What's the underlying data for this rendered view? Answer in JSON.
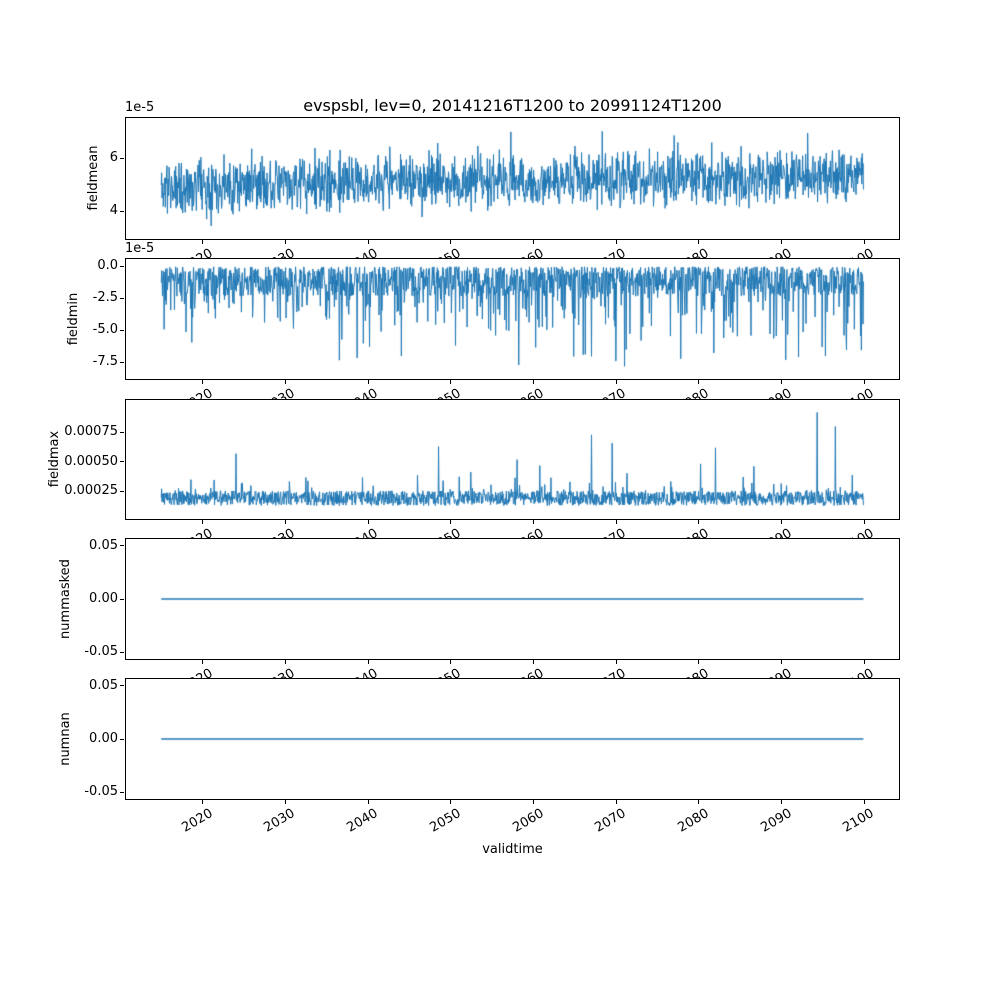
{
  "chart_data": {
    "type": "line",
    "title": "evspsbl, lev=0, 20141216T1200 to 20991124T1200",
    "xlabel": "validtime",
    "line_color": "#1f77b4",
    "background": "#ffffff",
    "x_start": 2014.96,
    "x_end": 2099.9,
    "xlim": [
      2010.7,
      2104.2
    ],
    "xticks": [
      2020,
      2030,
      2040,
      2050,
      2060,
      2070,
      2080,
      2090,
      2100
    ],
    "xtick_rotation_deg": 30,
    "panels": [
      {
        "ylabel": "fieldmean",
        "offset_text": "1e-5",
        "ylim": [
          2.96e-05,
          7.52e-05
        ],
        "yticks": [
          {
            "value": 6e-05,
            "label": "6"
          },
          {
            "value": 4e-05,
            "label": "4"
          }
        ],
        "series": {
          "gen": "mean",
          "seed": 11,
          "n": 1700,
          "base": 4.95e-05,
          "trend": 3.5e-06,
          "spread": 1.15e-05,
          "spike_prob": 0.08,
          "spike_scale": 2.2e-05,
          "clip": [
            3.4e-05,
            7.3e-05
          ],
          "description": "dense noisy band centred near 5e-5 (range ~3.5e-5 to 7.3e-5) with slight upward drift"
        }
      },
      {
        "ylabel": "fieldmin",
        "offset_text": "1e-5",
        "ylim": [
          -8.79e-05,
          5.5e-06
        ],
        "yticks": [
          {
            "value": 0,
            "label": "0.0"
          },
          {
            "value": -2.5e-05,
            "label": "-2.5"
          },
          {
            "value": -5e-05,
            "label": "-5.0"
          },
          {
            "value": -7.5e-05,
            "label": "-7.5"
          }
        ],
        "series": {
          "gen": "min",
          "seed": 22,
          "n": 1700,
          "surface": -5e-07,
          "band": 2.3e-05,
          "mid_prob": 0.12,
          "mid_base": 2e-05,
          "mid_scale": 2.3e-05,
          "mid_trend": 1.6e-05,
          "deep_prob_base": 0.008,
          "deep_prob_trend": 0.014,
          "deep_base": 4.8e-05,
          "deep_scale": 2.6e-05,
          "clip_min": -7.9e-05,
          "highlights": [
            {
              "x": 2058.2,
              "y": -7.7e-05
            },
            {
              "x": 2066.0,
              "y": -6.9e-05
            },
            {
              "x": 2071.0,
              "y": -7.8e-05
            },
            {
              "x": 2090.5,
              "y": -7.3e-05
            }
          ],
          "description": "noise between 0 and about -2.5e-5 with downward spikes (to -7.8e-5) growing more frequent over time"
        }
      },
      {
        "ylabel": "fieldmax",
        "offset_text": null,
        "ylim": [
          1.67e-05,
          0.0010252
        ],
        "yticks": [
          {
            "value": 0.00075,
            "label": "0.00075"
          },
          {
            "value": 0.0005,
            "label": "0.00050"
          },
          {
            "value": 0.00025,
            "label": "0.00025"
          }
        ],
        "series": {
          "gen": "max",
          "seed": 33,
          "n": 1700,
          "base": 0.00013,
          "spread": 0.000125,
          "spike_prob": 0.07,
          "spike_base": 0.00018,
          "spike_trend": 0.0002,
          "highlights": [
            {
              "x": 2024.0,
              "y": 0.00057
            },
            {
              "x": 2048.5,
              "y": 0.00063
            },
            {
              "x": 2058.0,
              "y": 0.00052
            },
            {
              "x": 2067.0,
              "y": 0.00073
            },
            {
              "x": 2069.5,
              "y": 0.00066
            },
            {
              "x": 2082.0,
              "y": 0.00062
            },
            {
              "x": 2094.3,
              "y": 0.00092
            },
            {
              "x": 2096.5,
              "y": 0.0008
            }
          ],
          "description": "noisy band ~1.3e-4 to 2.6e-4 with upward spikes growing over time, maximum ~9.2e-4 near 2094"
        }
      },
      {
        "ylabel": "nummasked",
        "offset_text": null,
        "ylim": [
          -0.0564,
          0.0564
        ],
        "yticks": [
          {
            "value": 0.05,
            "label": "0.05"
          },
          {
            "value": 0.0,
            "label": "0.00"
          },
          {
            "value": -0.05,
            "label": "-0.05"
          }
        ],
        "series": {
          "gen": "flat",
          "seed": 44,
          "n": 2,
          "value": 0,
          "description": "constant zero line"
        }
      },
      {
        "ylabel": "numnan",
        "offset_text": null,
        "ylim": [
          -0.0564,
          0.0564
        ],
        "yticks": [
          {
            "value": 0.05,
            "label": "0.05"
          },
          {
            "value": 0.0,
            "label": "0.00"
          },
          {
            "value": -0.05,
            "label": "-0.05"
          }
        ],
        "series": {
          "gen": "flat",
          "seed": 55,
          "n": 2,
          "value": 0,
          "description": "constant zero line"
        }
      }
    ]
  }
}
